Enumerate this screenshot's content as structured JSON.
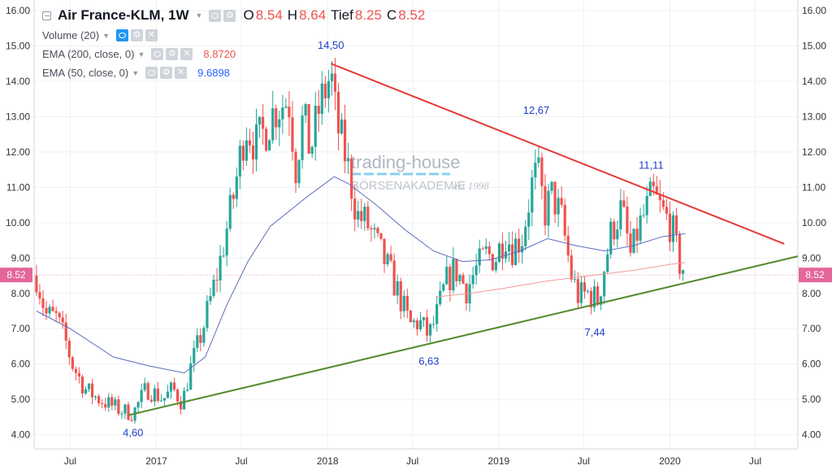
{
  "legend": {
    "symbol": "Air France-KLM, 1W",
    "open_label": "O",
    "open": "8.54",
    "high_label": "H",
    "high": "8.64",
    "low_label": "Tief",
    "low": "8.25",
    "close_label": "C",
    "close": "8.52",
    "volume_label": "Volume (20)",
    "ema200_label": "EMA (200, close, 0)",
    "ema200_value": "8.8720",
    "ema50_label": "EMA (50, close, 0)",
    "ema50_value": "9.6898",
    "volume_icon": "eye-icon",
    "settings_icon": "gear-icon",
    "remove_icon": "close-icon"
  },
  "watermark": {
    "line1": "trading-house",
    "line2": "BÖRSENAKADEMIE",
    "line3": "est 1998"
  },
  "chart_data": {
    "type": "candlestick",
    "y_ticks": [
      "4.00",
      "5.00",
      "6.00",
      "7.00",
      "8.00",
      "9.00",
      "10.00",
      "11.00",
      "12.00",
      "13.00",
      "14.00",
      "15.00",
      "16.00"
    ],
    "ylim": [
      3.6,
      16.3
    ],
    "x_ticks": [
      "Jul",
      "2017",
      "Jul",
      "2018",
      "Jul",
      "2019",
      "Jul",
      "2020",
      "Jul"
    ],
    "x_tick_dates": [
      "2016-07-01",
      "2017-01-01",
      "2017-07-01",
      "2018-01-01",
      "2018-07-01",
      "2019-01-01",
      "2019-07-01",
      "2020-01-01",
      "2020-07-01"
    ],
    "xlim": [
      "2016-04-15",
      "2020-09-30"
    ],
    "last_price": "8.52",
    "colors": {
      "up": "#26a69a",
      "down": "#ef5350",
      "ema50": "#5c6bc0",
      "ema200": "#ef9a9a",
      "resistance": "#e53935",
      "support": "#558b2f",
      "annotation": "#1e40c8",
      "price_badge": "#e4669c"
    },
    "anchors": [
      [
        "2016-04-20",
        8.5
      ],
      [
        "2016-05-10",
        7.4
      ],
      [
        "2016-06-01",
        7.3
      ],
      [
        "2016-06-20",
        6.7
      ],
      [
        "2016-07-05",
        6.0
      ],
      [
        "2016-08-01",
        5.3
      ],
      [
        "2016-09-01",
        5.0
      ],
      [
        "2016-10-15",
        4.7
      ],
      [
        "2016-11-12",
        4.6
      ],
      [
        "2016-12-10",
        5.3
      ],
      [
        "2016-12-25",
        5.2
      ],
      [
        "2017-01-15",
        5.0
      ],
      [
        "2017-02-05",
        5.3
      ],
      [
        "2017-02-25",
        4.9
      ],
      [
        "2017-03-15",
        5.9
      ],
      [
        "2017-04-10",
        7.0
      ],
      [
        "2017-05-15",
        8.8
      ],
      [
        "2017-06-15",
        10.8
      ],
      [
        "2017-07-10",
        12.8
      ],
      [
        "2017-08-01",
        12.2
      ],
      [
        "2017-08-20",
        12.6
      ],
      [
        "2017-09-10",
        13.2
      ],
      [
        "2017-10-10",
        13.5
      ],
      [
        "2017-10-25",
        11.6
      ],
      [
        "2017-11-10",
        13.0
      ],
      [
        "2017-11-25",
        12.0
      ],
      [
        "2017-12-15",
        13.3
      ],
      [
        "2018-01-08",
        14.2
      ],
      [
        "2018-01-20",
        12.8
      ],
      [
        "2018-02-10",
        11.8
      ],
      [
        "2018-03-05",
        10.2
      ],
      [
        "2018-03-25",
        10.0
      ],
      [
        "2018-04-15",
        9.4
      ],
      [
        "2018-05-10",
        8.7
      ],
      [
        "2018-06-01",
        8.0
      ],
      [
        "2018-06-25",
        7.1
      ],
      [
        "2018-07-15",
        7.2
      ],
      [
        "2018-08-05",
        6.8
      ],
      [
        "2018-08-20",
        7.3
      ],
      [
        "2018-09-10",
        8.3
      ],
      [
        "2018-09-30",
        8.7
      ],
      [
        "2018-10-25",
        8.1
      ],
      [
        "2018-11-10",
        8.6
      ],
      [
        "2018-12-05",
        9.1
      ],
      [
        "2018-12-25",
        9.0
      ],
      [
        "2019-01-15",
        9.7
      ],
      [
        "2019-01-30",
        9.3
      ],
      [
        "2019-02-20",
        9.6
      ],
      [
        "2019-03-15",
        11.2
      ],
      [
        "2019-03-25",
        11.4
      ],
      [
        "2019-04-10",
        10.3
      ],
      [
        "2019-04-25",
        10.8
      ],
      [
        "2019-05-15",
        10.1
      ],
      [
        "2019-06-05",
        8.5
      ],
      [
        "2019-06-20",
        7.9
      ],
      [
        "2019-07-10",
        8.0
      ],
      [
        "2019-08-01",
        7.8
      ],
      [
        "2019-08-15",
        8.8
      ],
      [
        "2019-08-30",
        9.8
      ],
      [
        "2019-09-20",
        10.4
      ],
      [
        "2019-10-10",
        9.0
      ],
      [
        "2019-10-25",
        9.8
      ],
      [
        "2019-11-10",
        10.3
      ],
      [
        "2019-11-25",
        10.8
      ],
      [
        "2019-12-15",
        10.3
      ],
      [
        "2020-01-05",
        9.9
      ],
      [
        "2020-01-20",
        8.9
      ],
      [
        "2020-02-03",
        8.52
      ]
    ],
    "ema50": [
      [
        "2016-04-20",
        7.5
      ],
      [
        "2016-07-01",
        7.0
      ],
      [
        "2016-10-01",
        6.2
      ],
      [
        "2016-12-15",
        5.95
      ],
      [
        "2017-03-01",
        5.75
      ],
      [
        "2017-04-15",
        6.2
      ],
      [
        "2017-06-01",
        7.7
      ],
      [
        "2017-07-15",
        8.9
      ],
      [
        "2017-09-01",
        9.9
      ],
      [
        "2017-11-15",
        10.7
      ],
      [
        "2018-01-15",
        11.3
      ],
      [
        "2018-02-15",
        11.1
      ],
      [
        "2018-04-15",
        10.5
      ],
      [
        "2018-06-15",
        9.8
      ],
      [
        "2018-08-15",
        9.2
      ],
      [
        "2018-10-15",
        8.9
      ],
      [
        "2018-12-15",
        8.95
      ],
      [
        "2019-02-15",
        9.2
      ],
      [
        "2019-04-15",
        9.55
      ],
      [
        "2019-06-15",
        9.35
      ],
      [
        "2019-08-15",
        9.2
      ],
      [
        "2019-10-15",
        9.35
      ],
      [
        "2019-12-15",
        9.6
      ],
      [
        "2020-02-03",
        9.69
      ]
    ],
    "ema200": [
      [
        "2018-08-20",
        7.9
      ],
      [
        "2018-11-01",
        8.0
      ],
      [
        "2019-01-15",
        8.15
      ],
      [
        "2019-04-15",
        8.35
      ],
      [
        "2019-07-15",
        8.5
      ],
      [
        "2019-10-15",
        8.65
      ],
      [
        "2020-01-01",
        8.82
      ],
      [
        "2020-02-03",
        8.87
      ]
    ],
    "trendlines": [
      {
        "name": "resistance",
        "from": [
          "2018-01-08",
          14.5
        ],
        "to": [
          "2020-09-01",
          9.4
        ]
      },
      {
        "name": "support",
        "from": [
          "2016-11-01",
          4.55
        ],
        "to": [
          "2020-09-30",
          9.05
        ]
      }
    ],
    "annotations": [
      {
        "text": "14,50",
        "date": "2018-01-08",
        "value": 14.5
      },
      {
        "text": "12,67",
        "date": "2019-03-22",
        "value": 12.67
      },
      {
        "text": "11,11",
        "date": "2019-11-22",
        "value": 11.11
      },
      {
        "text": "6,63",
        "date": "2018-08-05",
        "value": 6.63
      },
      {
        "text": "7,44",
        "date": "2019-07-25",
        "value": 7.44
      },
      {
        "text": "4,60",
        "date": "2016-11-12",
        "value": 4.6
      }
    ]
  }
}
